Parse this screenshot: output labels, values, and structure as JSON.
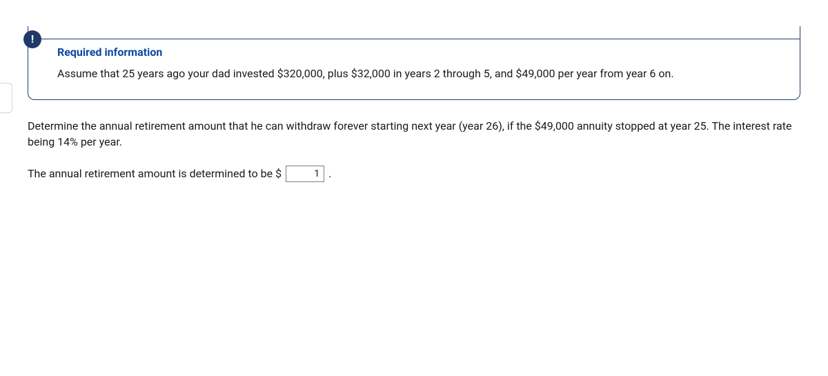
{
  "colors": {
    "accent": "#1f3a68",
    "title": "#0d47a1",
    "text": "#1a1a1a",
    "border_input": "#7a7f87",
    "background": "#ffffff"
  },
  "info_icon_glyph": "!",
  "required": {
    "title": "Required information",
    "body": "Assume that 25 years ago your dad invested $320,000, plus $32,000 in years 2 through 5, and $49,000 per year from year 6 on."
  },
  "question_text": "Determine the annual retirement amount that he can withdraw forever starting next year (year 26), if the $49,000 annuity stopped at year 25. The interest rate being 14% per year.",
  "answer": {
    "prefix": "The annual retirement amount is determined to be $",
    "value": "1",
    "suffix": "."
  }
}
